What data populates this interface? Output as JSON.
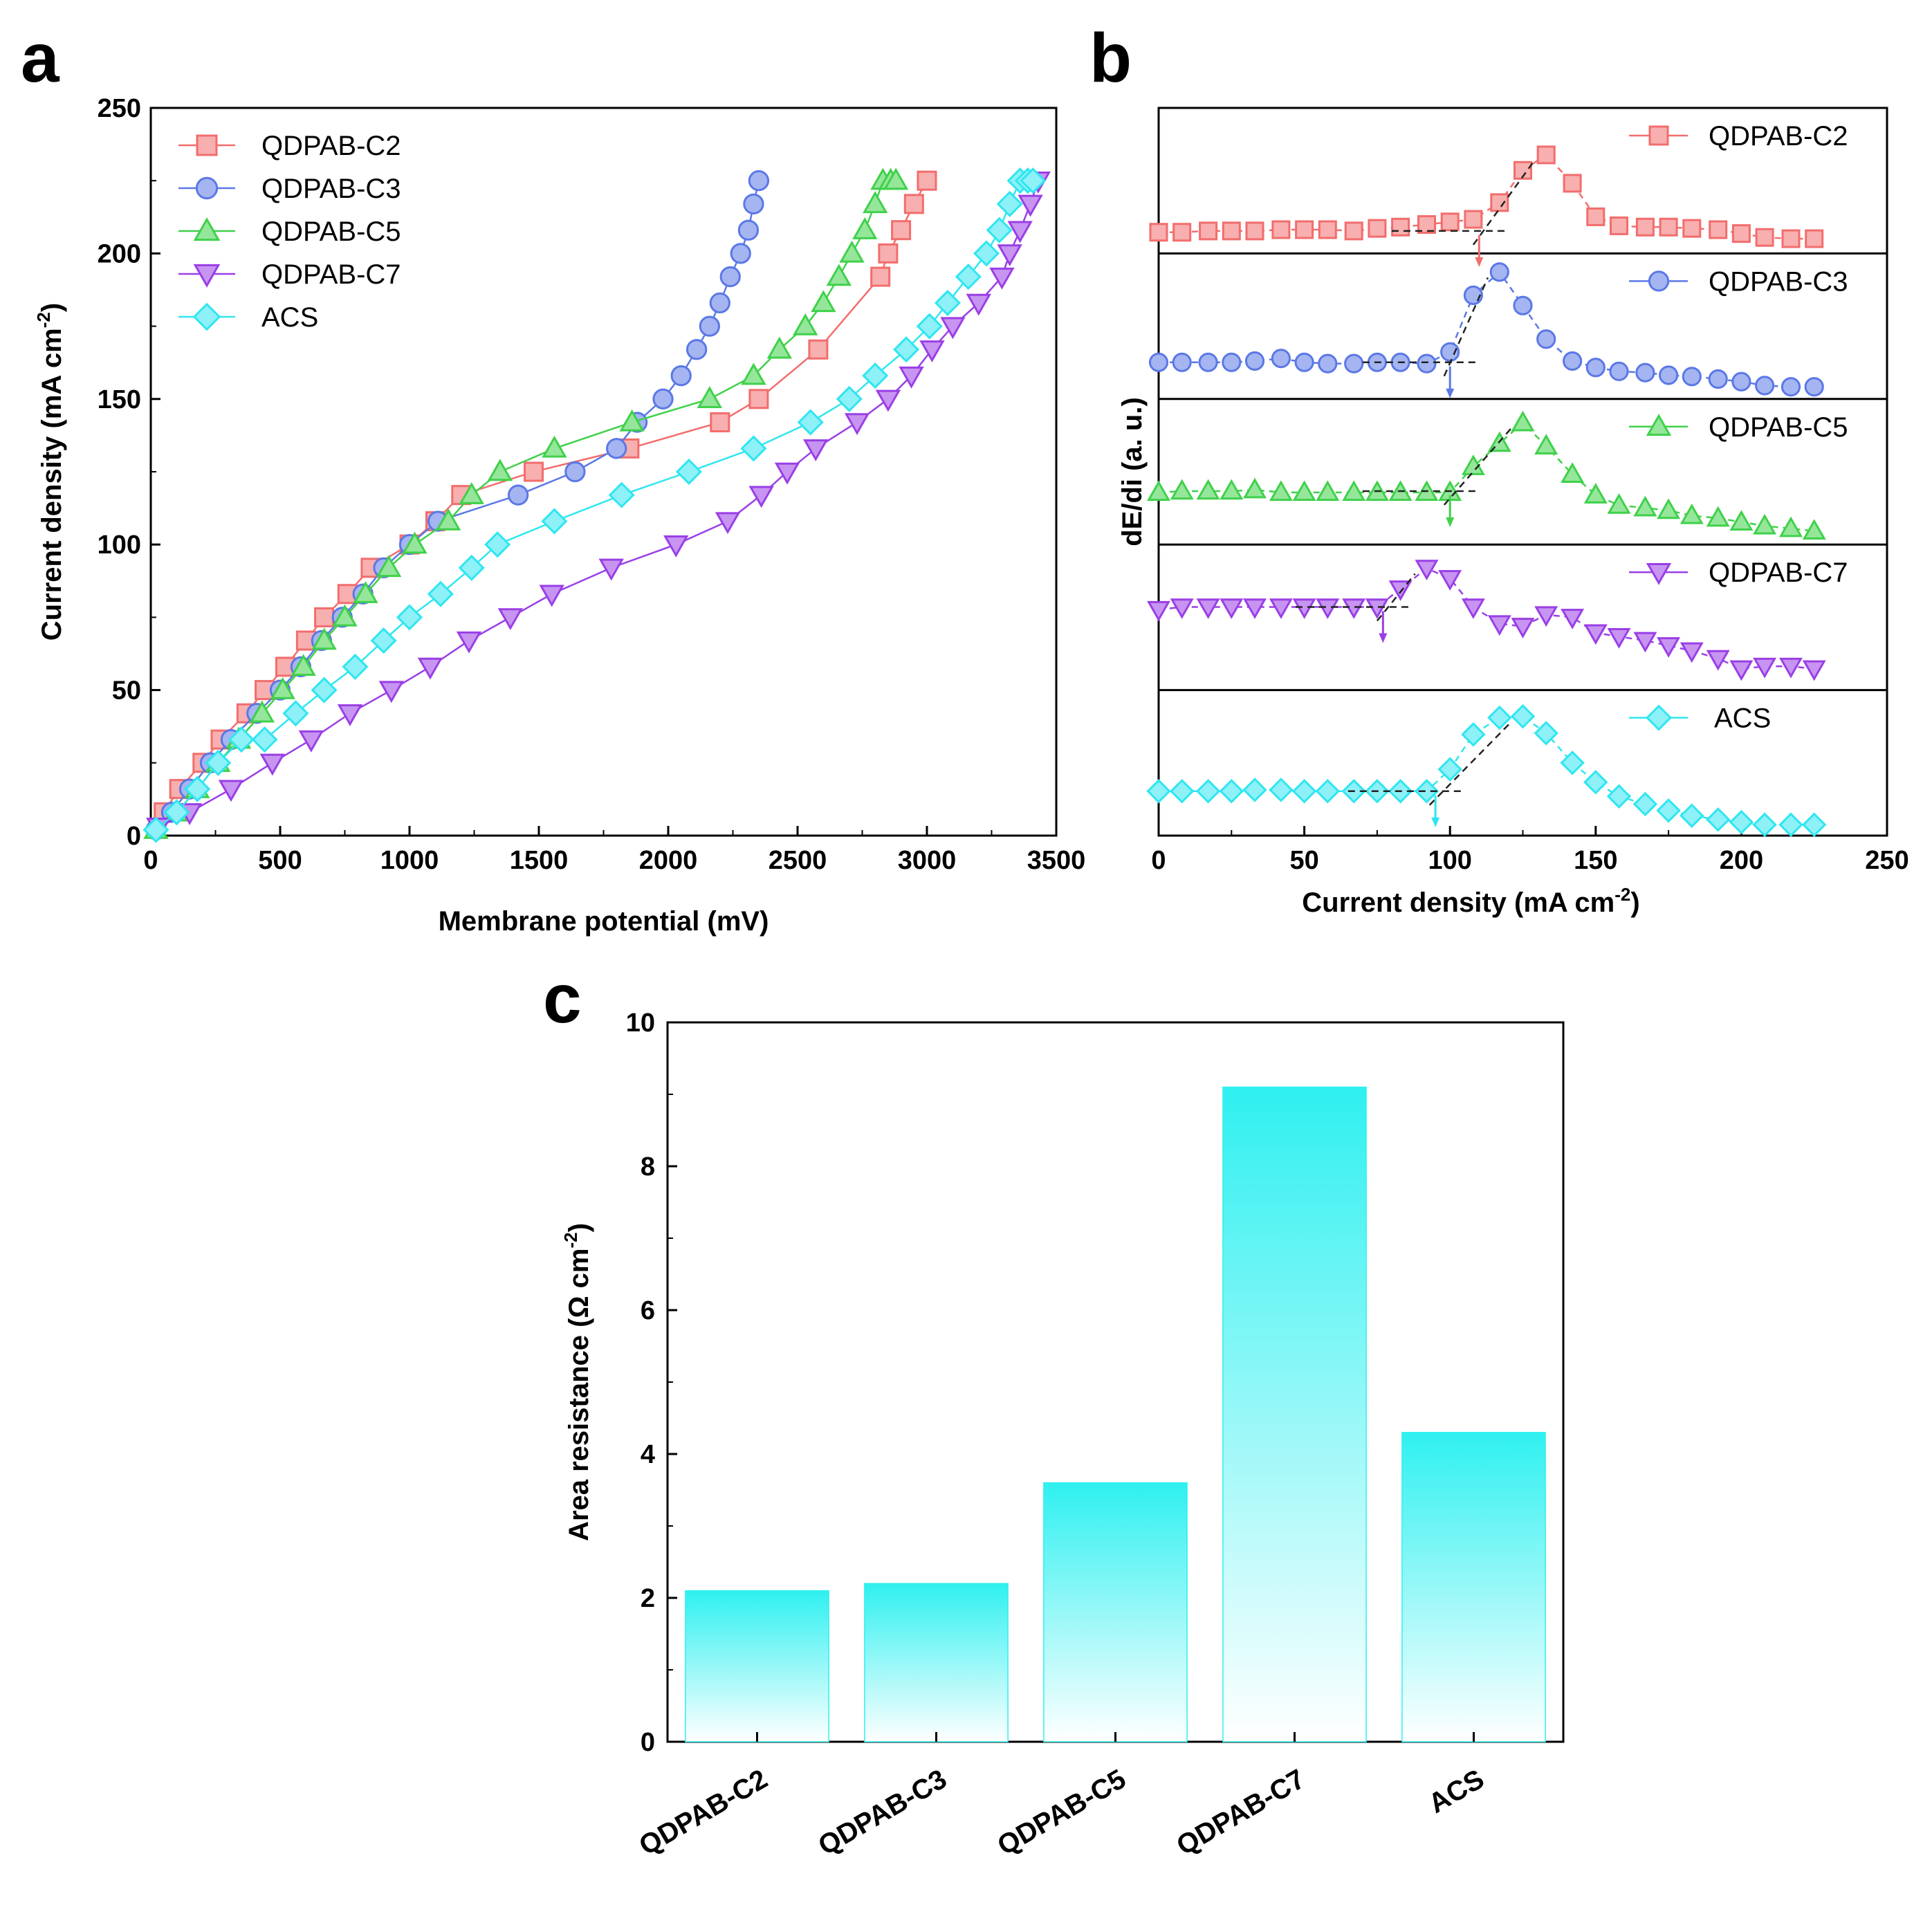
{
  "panels": {
    "a": "a",
    "b": "b",
    "c": "c"
  },
  "colors": {
    "QDPAB-C2": "#f26d6d",
    "QDPAB-C3": "#5b78e6",
    "QDPAB-C5": "#3fd14a",
    "QDPAB-C7": "#9a3fe6",
    "ACS": "#2fe6f0"
  },
  "chart_data": [
    {
      "type": "scatter",
      "panel": "a",
      "xlabel": "Membrane potential (mV)",
      "ylabel": "Current density (mA cm⁻²)",
      "xlim": [
        0,
        3500
      ],
      "ylim": [
        0,
        250
      ],
      "xticks": [
        0,
        500,
        1000,
        1500,
        2000,
        2500,
        3000,
        3500
      ],
      "yticks": [
        0,
        50,
        100,
        150,
        200,
        250
      ],
      "legend": "top-left",
      "series": [
        {
          "name": "QDPAB-C2",
          "marker": "square",
          "x": [
            50,
            110,
            200,
            270,
            370,
            440,
            520,
            600,
            670,
            760,
            850,
            1000,
            1100,
            1200,
            1480,
            1850,
            2200,
            2350,
            2580,
            2820,
            2850,
            2900,
            2950,
            3000
          ],
          "y": [
            8,
            16,
            25,
            33,
            42,
            50,
            58,
            67,
            75,
            83,
            92,
            100,
            108,
            117,
            125,
            133,
            142,
            150,
            167,
            192,
            200,
            208,
            217,
            225
          ]
        },
        {
          "name": "QDPAB-C3",
          "marker": "circle",
          "x": [
            20,
            80,
            150,
            230,
            310,
            410,
            500,
            580,
            660,
            740,
            820,
            900,
            1000,
            1110,
            1420,
            1640,
            1800,
            1880,
            1980,
            2050,
            2110,
            2160,
            2200,
            2240,
            2280,
            2310,
            2330,
            2350
          ],
          "y": [
            2,
            8,
            16,
            25,
            33,
            42,
            50,
            58,
            67,
            75,
            83,
            92,
            100,
            108,
            117,
            125,
            133,
            142,
            150,
            158,
            167,
            175,
            183,
            192,
            200,
            208,
            217,
            225
          ]
        },
        {
          "name": "QDPAB-C5",
          "marker": "triangle-up",
          "x": [
            20,
            100,
            180,
            260,
            340,
            430,
            510,
            590,
            670,
            750,
            830,
            920,
            1020,
            1150,
            1240,
            1350,
            1560,
            1860,
            2160,
            2330,
            2430,
            2530,
            2600,
            2660,
            2710,
            2760,
            2800,
            2830,
            2860,
            2880
          ],
          "y": [
            2,
            8,
            16,
            25,
            33,
            42,
            50,
            58,
            67,
            75,
            83,
            92,
            100,
            108,
            117,
            125,
            133,
            142,
            150,
            158,
            167,
            175,
            183,
            192,
            200,
            208,
            217,
            225,
            225,
            225
          ]
        },
        {
          "name": "QDPAB-C7",
          "marker": "triangle-down",
          "x": [
            30,
            150,
            310,
            470,
            620,
            770,
            930,
            1080,
            1230,
            1390,
            1550,
            1780,
            2030,
            2230,
            2360,
            2460,
            2570,
            2730,
            2850,
            2940,
            3020,
            3100,
            3200,
            3290,
            3320,
            3360,
            3400,
            3430
          ],
          "y": [
            3,
            8,
            16,
            25,
            33,
            42,
            50,
            58,
            67,
            75,
            83,
            92,
            100,
            108,
            117,
            125,
            133,
            142,
            150,
            158,
            167,
            175,
            183,
            192,
            200,
            208,
            217,
            225
          ]
        },
        {
          "name": "ACS",
          "marker": "diamond",
          "x": [
            20,
            100,
            180,
            260,
            350,
            440,
            560,
            670,
            790,
            900,
            1000,
            1120,
            1240,
            1340,
            1560,
            1820,
            2080,
            2330,
            2550,
            2700,
            2800,
            2920,
            3010,
            3080,
            3160,
            3230,
            3280,
            3320,
            3360,
            3390,
            3410
          ],
          "y": [
            2,
            8,
            16,
            25,
            33,
            33,
            42,
            50,
            58,
            67,
            75,
            83,
            92,
            100,
            108,
            117,
            125,
            133,
            142,
            150,
            158,
            167,
            175,
            183,
            192,
            200,
            208,
            217,
            225,
            225,
            225
          ]
        }
      ]
    },
    {
      "type": "line",
      "panel": "b",
      "xlabel": "Current density (mA cm⁻²)",
      "ylabel": "dE/di (a. u.)",
      "xlim": [
        0,
        250
      ],
      "xticks": [
        0,
        50,
        100,
        150,
        200,
        250
      ],
      "stacked": true,
      "legend": "top-right of each sub-panel",
      "series": [
        {
          "name": "QDPAB-C2",
          "marker": "square",
          "limiting_current": 110,
          "x": [
            0,
            8,
            17,
            25,
            33,
            42,
            50,
            58,
            67,
            75,
            83,
            92,
            100,
            108,
            117,
            125,
            133,
            142,
            150,
            158,
            167,
            175,
            183,
            192,
            200,
            208,
            217,
            225
          ],
          "y": [
            0.1,
            0.1,
            0.11,
            0.11,
            0.11,
            0.12,
            0.12,
            0.12,
            0.11,
            0.13,
            0.14,
            0.16,
            0.18,
            0.2,
            0.33,
            0.58,
            0.7,
            0.48,
            0.22,
            0.15,
            0.14,
            0.14,
            0.13,
            0.12,
            0.09,
            0.06,
            0.05,
            0.05
          ]
        },
        {
          "name": "QDPAB-C3",
          "marker": "circle",
          "limiting_current": 100,
          "x": [
            0,
            8,
            17,
            25,
            33,
            42,
            50,
            58,
            67,
            75,
            83,
            92,
            100,
            108,
            117,
            125,
            133,
            142,
            150,
            158,
            167,
            175,
            183,
            192,
            200,
            208,
            217,
            225
          ],
          "y": [
            0.22,
            0.22,
            0.22,
            0.22,
            0.23,
            0.25,
            0.22,
            0.21,
            0.21,
            0.22,
            0.22,
            0.21,
            0.3,
            0.74,
            0.92,
            0.66,
            0.4,
            0.23,
            0.18,
            0.15,
            0.14,
            0.12,
            0.11,
            0.09,
            0.07,
            0.04,
            0.03,
            0.03
          ]
        },
        {
          "name": "QDPAB-C5",
          "marker": "triangle-up",
          "limiting_current": 100,
          "x": [
            0,
            8,
            17,
            25,
            33,
            42,
            50,
            58,
            67,
            75,
            83,
            92,
            100,
            108,
            117,
            125,
            133,
            142,
            150,
            158,
            167,
            175,
            183,
            192,
            200,
            208,
            217,
            225
          ],
          "y": [
            0.34,
            0.35,
            0.35,
            0.35,
            0.36,
            0.34,
            0.34,
            0.34,
            0.34,
            0.34,
            0.34,
            0.34,
            0.34,
            0.54,
            0.72,
            0.88,
            0.7,
            0.48,
            0.32,
            0.24,
            0.22,
            0.2,
            0.16,
            0.14,
            0.11,
            0.08,
            0.06,
            0.04
          ]
        },
        {
          "name": "QDPAB-C7",
          "marker": "triangle-down",
          "limiting_current": 77,
          "x": [
            0,
            8,
            17,
            25,
            33,
            42,
            50,
            58,
            67,
            75,
            83,
            92,
            100,
            108,
            117,
            125,
            133,
            142,
            150,
            158,
            167,
            175,
            183,
            192,
            200,
            208,
            217,
            225
          ],
          "y": [
            0.56,
            0.58,
            0.58,
            0.58,
            0.58,
            0.58,
            0.58,
            0.58,
            0.58,
            0.58,
            0.72,
            0.88,
            0.8,
            0.58,
            0.45,
            0.43,
            0.52,
            0.5,
            0.38,
            0.35,
            0.32,
            0.28,
            0.24,
            0.18,
            0.1,
            0.12,
            0.12,
            0.1
          ]
        },
        {
          "name": "ACS",
          "marker": "diamond",
          "limiting_current": 95,
          "x": [
            0,
            8,
            17,
            25,
            33,
            42,
            50,
            58,
            67,
            75,
            83,
            92,
            100,
            108,
            117,
            125,
            133,
            142,
            150,
            158,
            167,
            175,
            183,
            192,
            200,
            208,
            217,
            225
          ],
          "y": [
            0.28,
            0.28,
            0.28,
            0.28,
            0.29,
            0.29,
            0.28,
            0.28,
            0.28,
            0.28,
            0.28,
            0.28,
            0.45,
            0.72,
            0.85,
            0.86,
            0.73,
            0.5,
            0.35,
            0.24,
            0.18,
            0.13,
            0.09,
            0.06,
            0.04,
            0.02,
            0.02,
            0.02
          ]
        }
      ]
    },
    {
      "type": "bar",
      "panel": "c",
      "categories": [
        "QDPAB-C2",
        "QDPAB-C3",
        "QDPAB-C5",
        "QDPAB-C7",
        "ACS"
      ],
      "values": [
        2.1,
        2.2,
        3.6,
        9.1,
        4.3
      ],
      "ylabel": "Area resistance (Ω cm⁻²)",
      "ylim": [
        0,
        10
      ],
      "yticks": [
        0,
        2,
        4,
        6,
        8,
        10
      ],
      "color": "#2ff0f0"
    }
  ]
}
